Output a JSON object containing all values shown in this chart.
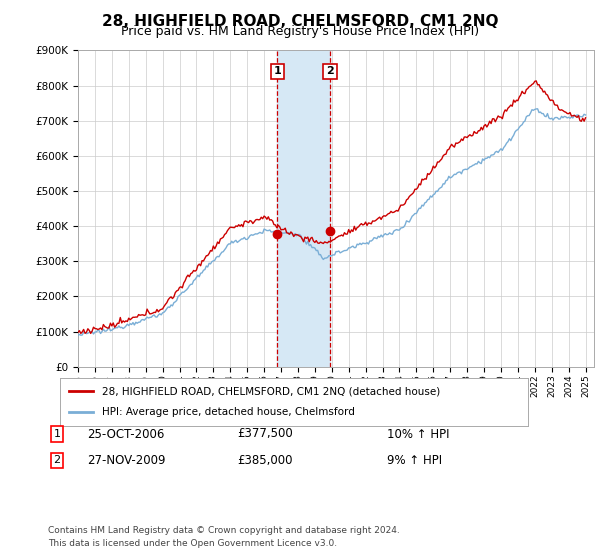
{
  "title": "28, HIGHFIELD ROAD, CHELMSFORD, CM1 2NQ",
  "subtitle": "Price paid vs. HM Land Registry's House Price Index (HPI)",
  "ylim": [
    0,
    900000
  ],
  "yticks": [
    0,
    100000,
    200000,
    300000,
    400000,
    500000,
    600000,
    700000,
    800000,
    900000
  ],
  "ytick_labels": [
    "£0",
    "£100K",
    "£200K",
    "£300K",
    "£400K",
    "£500K",
    "£600K",
    "£700K",
    "£800K",
    "£900K"
  ],
  "xlim_start": 1995,
  "xlim_end": 2025.5,
  "sale1_x": 2006.79,
  "sale1_y": 377500,
  "sale1_date": "25-OCT-2006",
  "sale1_price": "£377,500",
  "sale1_hpi": "10% ↑ HPI",
  "sale2_x": 2009.9,
  "sale2_y": 385000,
  "sale2_date": "27-NOV-2009",
  "sale2_price": "£385,000",
  "sale2_hpi": "9% ↑ HPI",
  "legend_red": "28, HIGHFIELD ROAD, CHELMSFORD, CM1 2NQ (detached house)",
  "legend_blue": "HPI: Average price, detached house, Chelmsford",
  "footnote_line1": "Contains HM Land Registry data © Crown copyright and database right 2024.",
  "footnote_line2": "This data is licensed under the Open Government Licence v3.0.",
  "red_color": "#cc0000",
  "blue_color": "#7aaed6",
  "shade_color": "#d6e8f5",
  "vline_color": "#cc0000",
  "bg_color": "#ffffff",
  "grid_color": "#cccccc",
  "title_fontsize": 11,
  "subtitle_fontsize": 9
}
